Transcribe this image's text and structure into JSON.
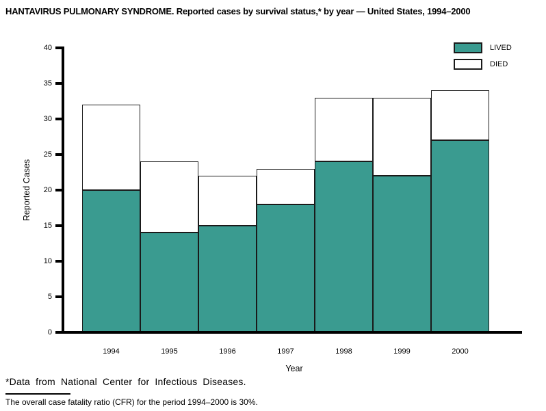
{
  "title": "HANTAVIRUS PULMONARY SYNDROME. Reported cases by survival status,* by year — United States, 1994–2000",
  "chart_data": {
    "type": "bar",
    "stacked": true,
    "title": "HANTAVIRUS PULMONARY SYNDROME. Reported cases by survival status,* by year — United States, 1994–2000",
    "categories": [
      "1994",
      "1995",
      "1996",
      "1997",
      "1998",
      "1999",
      "2000"
    ],
    "series": [
      {
        "name": "LIVED",
        "color": "#3a9b90",
        "values": [
          20,
          14,
          15,
          18,
          24,
          22,
          27
        ]
      },
      {
        "name": "DIED",
        "color": "#ffffff",
        "values": [
          12,
          10,
          7,
          5,
          9,
          11,
          7
        ]
      }
    ],
    "totals": [
      32,
      24,
      22,
      23,
      33,
      33,
      34
    ],
    "xlabel": "Year",
    "ylabel": "Reported Cases",
    "ylim": [
      0,
      40
    ],
    "yticks": [
      0,
      5,
      10,
      15,
      20,
      25,
      30,
      35,
      40
    ],
    "grid": false,
    "legend_position": "top-right"
  },
  "legend": {
    "items": [
      {
        "label": "LIVED",
        "color": "#3a9b90"
      },
      {
        "label": "DIED",
        "color": "#ffffff"
      }
    ]
  },
  "footnotes": {
    "source": "*Data from National Center for Infectious Diseases.",
    "cfr": "The overall case fatality ratio (CFR) for the period 1994–2000 is 30%."
  },
  "colors": {
    "lived": "#3a9b90",
    "died": "#ffffff",
    "axis": "#000000",
    "bar_border": "#1a1a1a"
  }
}
